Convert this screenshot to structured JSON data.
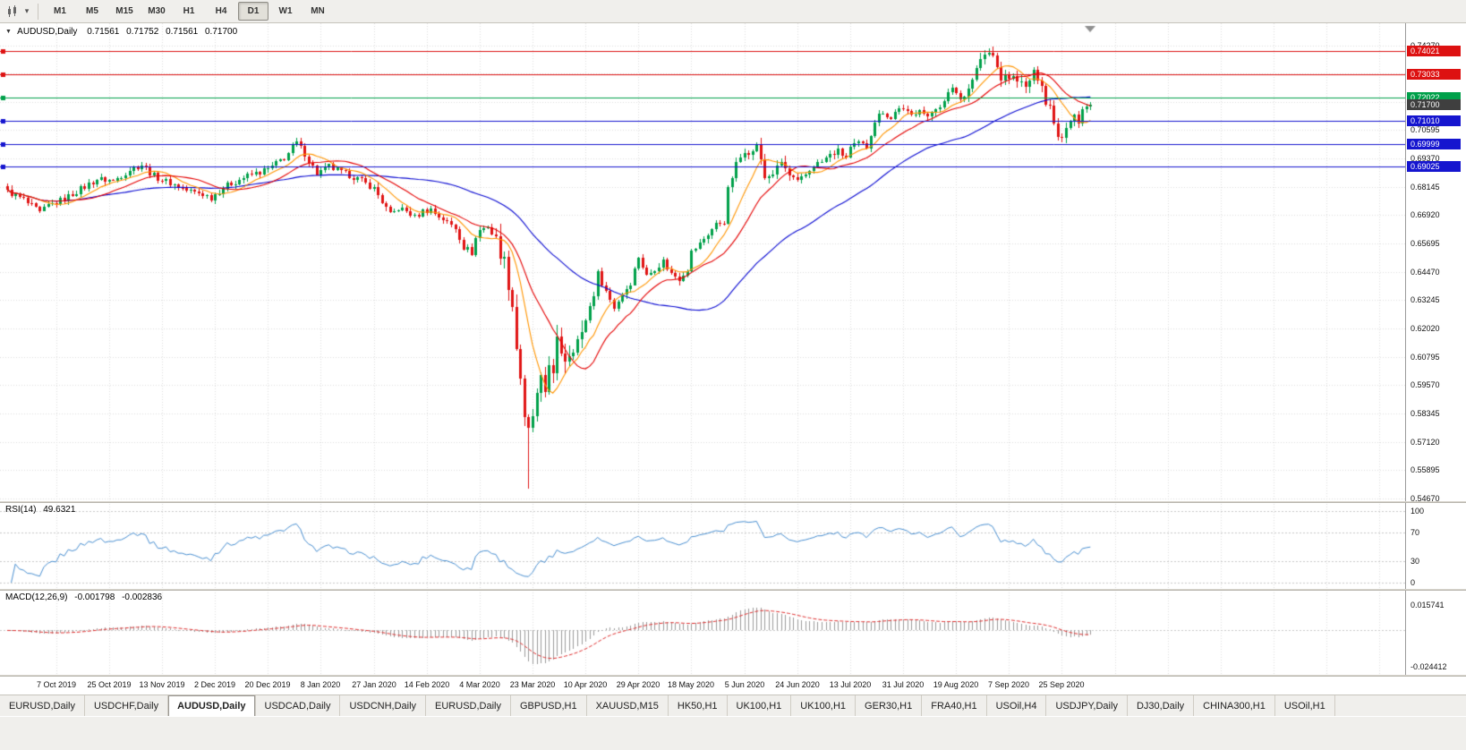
{
  "toolbar": {
    "caret_icon": "▾",
    "timeframes": [
      "M1",
      "M5",
      "M15",
      "M30",
      "H1",
      "H4",
      "D1",
      "W1",
      "MN"
    ],
    "active_timeframe": "D1"
  },
  "chart": {
    "header": {
      "collapse_icon": "▼",
      "symbol": "AUDUSD,Daily",
      "open": "0.71561",
      "high": "0.71752",
      "low": "0.71561",
      "close": "0.71700"
    },
    "price_axis": {
      "ticks": [
        "0.74270",
        "0.70595",
        "0.69370",
        "0.68145",
        "0.66920",
        "0.65695",
        "0.64470",
        "0.63245",
        "0.62020",
        "0.60795",
        "0.59570",
        "0.58345",
        "0.57120",
        "0.55895",
        "0.54670"
      ],
      "tags": [
        {
          "label": "0.74021",
          "bg": "#dd1111",
          "kind": "resistance-line"
        },
        {
          "label": "0.73033",
          "bg": "#dd1111",
          "kind": "resistance-line"
        },
        {
          "label": "0.72022",
          "bg": "#00a04a",
          "kind": "level-line"
        },
        {
          "label": "0.71700",
          "bg": "#3f3f3f",
          "kind": "last-price"
        },
        {
          "label": "0.71010",
          "bg": "#1515cf",
          "kind": "support-line"
        },
        {
          "label": "0.69999",
          "bg": "#1515cf",
          "kind": "support-line"
        },
        {
          "label": "0.69025",
          "bg": "#1515cf",
          "kind": "support-line"
        }
      ]
    },
    "time_axis": {
      "labels": [
        "7 Oct 2019",
        "25 Oct 2019",
        "13 Nov 2019",
        "2 Dec 2019",
        "20 Dec 2019",
        "8 Jan 2020",
        "27 Jan 2020",
        "14 Feb 2020",
        "4 Mar 2020",
        "23 Mar 2020",
        "10 Apr 2020",
        "29 Apr 2020",
        "18 May 2020",
        "5 Jun 2020",
        "24 Jun 2020",
        "13 Jul 2020",
        "31 Jul 2020",
        "19 Aug 2020",
        "7 Sep 2020",
        "25 Sep 2020"
      ]
    }
  },
  "rsi_panel": {
    "name": "RSI(14)",
    "value": "49.6321",
    "levels": [
      "100",
      "70",
      "30",
      "0"
    ],
    "line_color": "#4a90d2"
  },
  "macd_panel": {
    "name": "MACD(12,26,9)",
    "main_value": "-0.001798",
    "signal_value": "-0.002836",
    "axis_top": "0.015741",
    "axis_bottom": "-0.024412",
    "histogram_color": "#9b9b9b",
    "signal_color": "#e03030"
  },
  "tabs": {
    "active_index": 2,
    "items": [
      "EURUSD,Daily",
      "USDCHF,Daily",
      "AUDUSD,Daily",
      "USDCAD,Daily",
      "USDCNH,Daily",
      "EURUSD,Daily",
      "GBPUSD,H1",
      "XAUUSD,M15",
      "HK50,H1",
      "UK100,H1",
      "UK100,H1",
      "GER30,H1",
      "FRA40,H1",
      "USOil,H4",
      "USDJPY,Daily",
      "DJ30,Daily",
      "CHINA300,H1",
      "USOil,H1"
    ]
  },
  "chart_data": {
    "type": "candlestick",
    "title": "AUDUSD,Daily",
    "ylabel": "price",
    "y_range": [
      0.5455,
      0.7522
    ],
    "x_tick_labels": [
      "7 Oct 2019",
      "25 Oct 2019",
      "13 Nov 2019",
      "2 Dec 2019",
      "20 Dec 2019",
      "8 Jan 2020",
      "27 Jan 2020",
      "14 Feb 2020",
      "4 Mar 2020",
      "23 Mar 2020",
      "10 Apr 2020",
      "29 Apr 2020",
      "18 May 2020",
      "5 Jun 2020",
      "24 Jun 2020",
      "13 Jul 2020",
      "31 Jul 2020",
      "19 Aug 2020",
      "7 Sep 2020",
      "25 Sep 2020"
    ],
    "candle_colors": {
      "up": "#00a04a",
      "down": "#e01414"
    },
    "close_anchors": [
      [
        0,
        0.6795
      ],
      [
        4,
        0.6758
      ],
      [
        8,
        0.6702
      ],
      [
        10,
        0.6732
      ],
      [
        14,
        0.6765
      ],
      [
        18,
        0.6805
      ],
      [
        22,
        0.6848
      ],
      [
        26,
        0.684
      ],
      [
        30,
        0.689
      ],
      [
        33,
        0.691
      ],
      [
        36,
        0.6862
      ],
      [
        40,
        0.683
      ],
      [
        44,
        0.68
      ],
      [
        48,
        0.6782
      ],
      [
        50,
        0.6768
      ],
      [
        53,
        0.6812
      ],
      [
        57,
        0.6848
      ],
      [
        61,
        0.6872
      ],
      [
        64,
        0.689
      ],
      [
        68,
        0.694
      ],
      [
        71,
        0.7004
      ],
      [
        73,
        0.6958
      ],
      [
        76,
        0.6872
      ],
      [
        79,
        0.6902
      ],
      [
        82,
        0.6878
      ],
      [
        86,
        0.685
      ],
      [
        90,
        0.6808
      ],
      [
        92,
        0.675
      ],
      [
        94,
        0.6692
      ],
      [
        96,
        0.6722
      ],
      [
        98,
        0.671
      ],
      [
        100,
        0.6682
      ],
      [
        102,
        0.6712
      ],
      [
        104,
        0.6716
      ],
      [
        106,
        0.6688
      ],
      [
        108,
        0.666
      ],
      [
        110,
        0.6638
      ],
      [
        112,
        0.6555
      ],
      [
        114,
        0.653
      ],
      [
        115,
        0.6592
      ],
      [
        116,
        0.6628
      ],
      [
        118,
        0.6645
      ],
      [
        120,
        0.6582
      ],
      [
        122,
        0.649
      ],
      [
        124,
        0.6305
      ],
      [
        125,
        0.612
      ],
      [
        126,
        0.5992
      ],
      [
        127,
        0.5795
      ],
      [
        128,
        0.5748
      ],
      [
        129,
        0.5825
      ],
      [
        130,
        0.5902
      ],
      [
        131,
        0.5968
      ],
      [
        132,
        0.5928
      ],
      [
        133,
        0.6068
      ],
      [
        134,
        0.5988
      ],
      [
        135,
        0.6138
      ],
      [
        137,
        0.6075
      ],
      [
        139,
        0.6132
      ],
      [
        141,
        0.6168
      ],
      [
        142,
        0.6242
      ],
      [
        144,
        0.6352
      ],
      [
        145,
        0.6438
      ],
      [
        147,
        0.6362
      ],
      [
        149,
        0.6292
      ],
      [
        151,
        0.6352
      ],
      [
        153,
        0.6402
      ],
      [
        155,
        0.6512
      ],
      [
        157,
        0.6428
      ],
      [
        159,
        0.6462
      ],
      [
        161,
        0.6492
      ],
      [
        163,
        0.6438
      ],
      [
        165,
        0.6418
      ],
      [
        167,
        0.6462
      ],
      [
        168,
        0.6532
      ],
      [
        170,
        0.6568
      ],
      [
        172,
        0.6612
      ],
      [
        174,
        0.6652
      ],
      [
        176,
        0.6665
      ],
      [
        177,
        0.6802
      ],
      [
        179,
        0.6912
      ],
      [
        181,
        0.6972
      ],
      [
        183,
        0.6962
      ],
      [
        184,
        0.7002
      ],
      [
        186,
        0.6852
      ],
      [
        188,
        0.6872
      ],
      [
        190,
        0.6922
      ],
      [
        192,
        0.6862
      ],
      [
        194,
        0.6832
      ],
      [
        196,
        0.6868
      ],
      [
        198,
        0.6908
      ],
      [
        200,
        0.6922
      ],
      [
        202,
        0.6952
      ],
      [
        204,
        0.6968
      ],
      [
        206,
        0.6942
      ],
      [
        207,
        0.6982
      ],
      [
        209,
        0.7002
      ],
      [
        211,
        0.6988
      ],
      [
        213,
        0.7102
      ],
      [
        215,
        0.7142
      ],
      [
        217,
        0.7108
      ],
      [
        219,
        0.7162
      ],
      [
        220,
        0.7142
      ],
      [
        222,
        0.7122
      ],
      [
        224,
        0.7158
      ],
      [
        226,
        0.7108
      ],
      [
        228,
        0.7162
      ],
      [
        230,
        0.7178
      ],
      [
        232,
        0.7248
      ],
      [
        234,
        0.7192
      ],
      [
        236,
        0.7242
      ],
      [
        237,
        0.7282
      ],
      [
        239,
        0.7368
      ],
      [
        241,
        0.7392
      ],
      [
        242,
        0.7378
      ],
      [
        244,
        0.7282
      ],
      [
        246,
        0.7288
      ],
      [
        248,
        0.7282
      ],
      [
        250,
        0.7242
      ],
      [
        252,
        0.7308
      ],
      [
        254,
        0.7262
      ],
      [
        255,
        0.7172
      ],
      [
        256,
        0.7165
      ],
      [
        258,
        0.7032
      ],
      [
        259,
        0.7038
      ],
      [
        260,
        0.7078
      ],
      [
        261,
        0.7105
      ],
      [
        262,
        0.7132
      ],
      [
        263,
        0.7088
      ],
      [
        264,
        0.715
      ],
      [
        265,
        0.7162
      ],
      [
        266,
        0.717
      ]
    ],
    "wick_extremes": {
      "low": {
        "day": 128,
        "price": 0.551
      },
      "high": {
        "day": 241,
        "price": 0.7414
      }
    },
    "last_ohlc": {
      "open": 0.71561,
      "high": 0.71752,
      "low": 0.71561,
      "close": 0.717
    },
    "moving_averages": [
      {
        "period": 9,
        "color": "#ff9500"
      },
      {
        "period": 18,
        "color": "#e50000"
      },
      {
        "period": 50,
        "color": "#0a0ad2"
      }
    ],
    "horizontal_lines": [
      {
        "price": 0.74021,
        "color": "#dd1111"
      },
      {
        "price": 0.73033,
        "color": "#dd1111"
      },
      {
        "price": 0.72022,
        "color": "#00a04a"
      },
      {
        "price": 0.7101,
        "color": "#1515cf"
      },
      {
        "price": 0.69999,
        "color": "#1515cf"
      },
      {
        "price": 0.69025,
        "color": "#1515cf"
      }
    ],
    "current_price": 0.717,
    "indicators": [
      {
        "name": "RSI",
        "params": [
          14
        ],
        "current": 49.6321,
        "range": [
          0,
          100
        ],
        "levels": [
          100,
          70,
          30,
          0
        ],
        "color": "#4a90d2",
        "derived_from": "close_anchors"
      },
      {
        "name": "MACD",
        "params": [
          12,
          26,
          9
        ],
        "current_main": -0.001798,
        "current_signal": -0.002836,
        "axis_max": 0.015741,
        "axis_min": -0.024412,
        "histogram_color": "#9b9b9b",
        "signal_color": "#e03030",
        "derived_from": "close_anchors"
      }
    ]
  }
}
